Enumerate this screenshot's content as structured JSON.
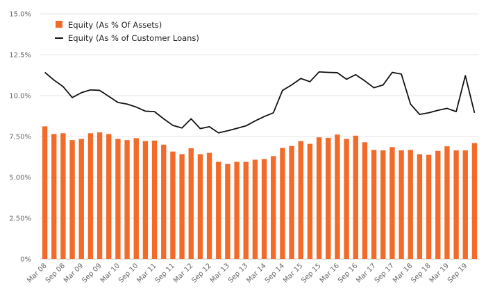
{
  "chart_data": {
    "type": "bar",
    "title": "",
    "xlabel": "",
    "ylabel": "",
    "ylim": [
      0,
      15
    ],
    "y_ticks": [
      0,
      2.5,
      5,
      7.5,
      10,
      12.5,
      15
    ],
    "y_tick_labels": [
      "0%",
      "2.50%",
      "5.00%",
      "7.50%",
      "10.0%",
      "12.5%",
      "15.0%"
    ],
    "grid": true,
    "legend_position": "top-left",
    "colors": {
      "bar": "#f26b2a",
      "line": "#111111",
      "grid": "#e6e6e6",
      "axis": "#cccccc",
      "text": "#666666"
    },
    "x_tick_labels": [
      "Mar 08",
      "Sep 08",
      "Mar 09",
      "Sep 09",
      "Mar 10",
      "Sep 10",
      "Mar 11",
      "Sep 11",
      "Mar 12",
      "Sep 12",
      "Mar 13",
      "Sep 13",
      "Mar 14",
      "Sep 14",
      "Mar 15",
      "Sep 15",
      "Mar 16",
      "Sep 16",
      "Mar 17",
      "Sep 17",
      "Mar 18",
      "Sep 18",
      "Mar 19",
      "Sep 19"
    ],
    "series": [
      {
        "name": "Equity (As % Of Assets)",
        "type": "bar",
        "values": [
          8.12,
          7.65,
          7.7,
          7.28,
          7.35,
          7.7,
          7.75,
          7.65,
          7.35,
          7.28,
          7.4,
          7.22,
          7.25,
          7.0,
          6.58,
          6.42,
          6.78,
          6.42,
          6.5,
          5.95,
          5.82,
          5.95,
          5.95,
          6.08,
          6.12,
          6.3,
          6.8,
          6.92,
          7.22,
          7.05,
          7.45,
          7.42,
          7.62,
          7.35,
          7.55,
          7.15,
          6.68,
          6.65,
          6.85,
          6.65,
          6.68,
          6.42,
          6.38,
          6.62,
          6.9,
          6.65,
          6.65,
          7.1
        ]
      },
      {
        "name": "Equity (As % of Customer Loans)",
        "type": "line",
        "values": [
          11.42,
          10.95,
          10.55,
          9.88,
          10.18,
          10.35,
          10.32,
          9.95,
          9.58,
          9.48,
          9.3,
          9.05,
          9.02,
          8.58,
          8.18,
          8.02,
          8.58,
          7.98,
          8.1,
          7.72,
          7.85,
          8.0,
          8.15,
          8.45,
          8.72,
          8.95,
          10.32,
          10.65,
          11.05,
          10.85,
          11.45,
          11.42,
          11.4,
          11.0,
          11.28,
          10.9,
          10.48,
          10.65,
          11.42,
          11.32,
          9.48,
          8.85,
          8.95,
          9.1,
          9.22,
          9.02,
          11.22,
          8.95
        ]
      }
    ]
  }
}
